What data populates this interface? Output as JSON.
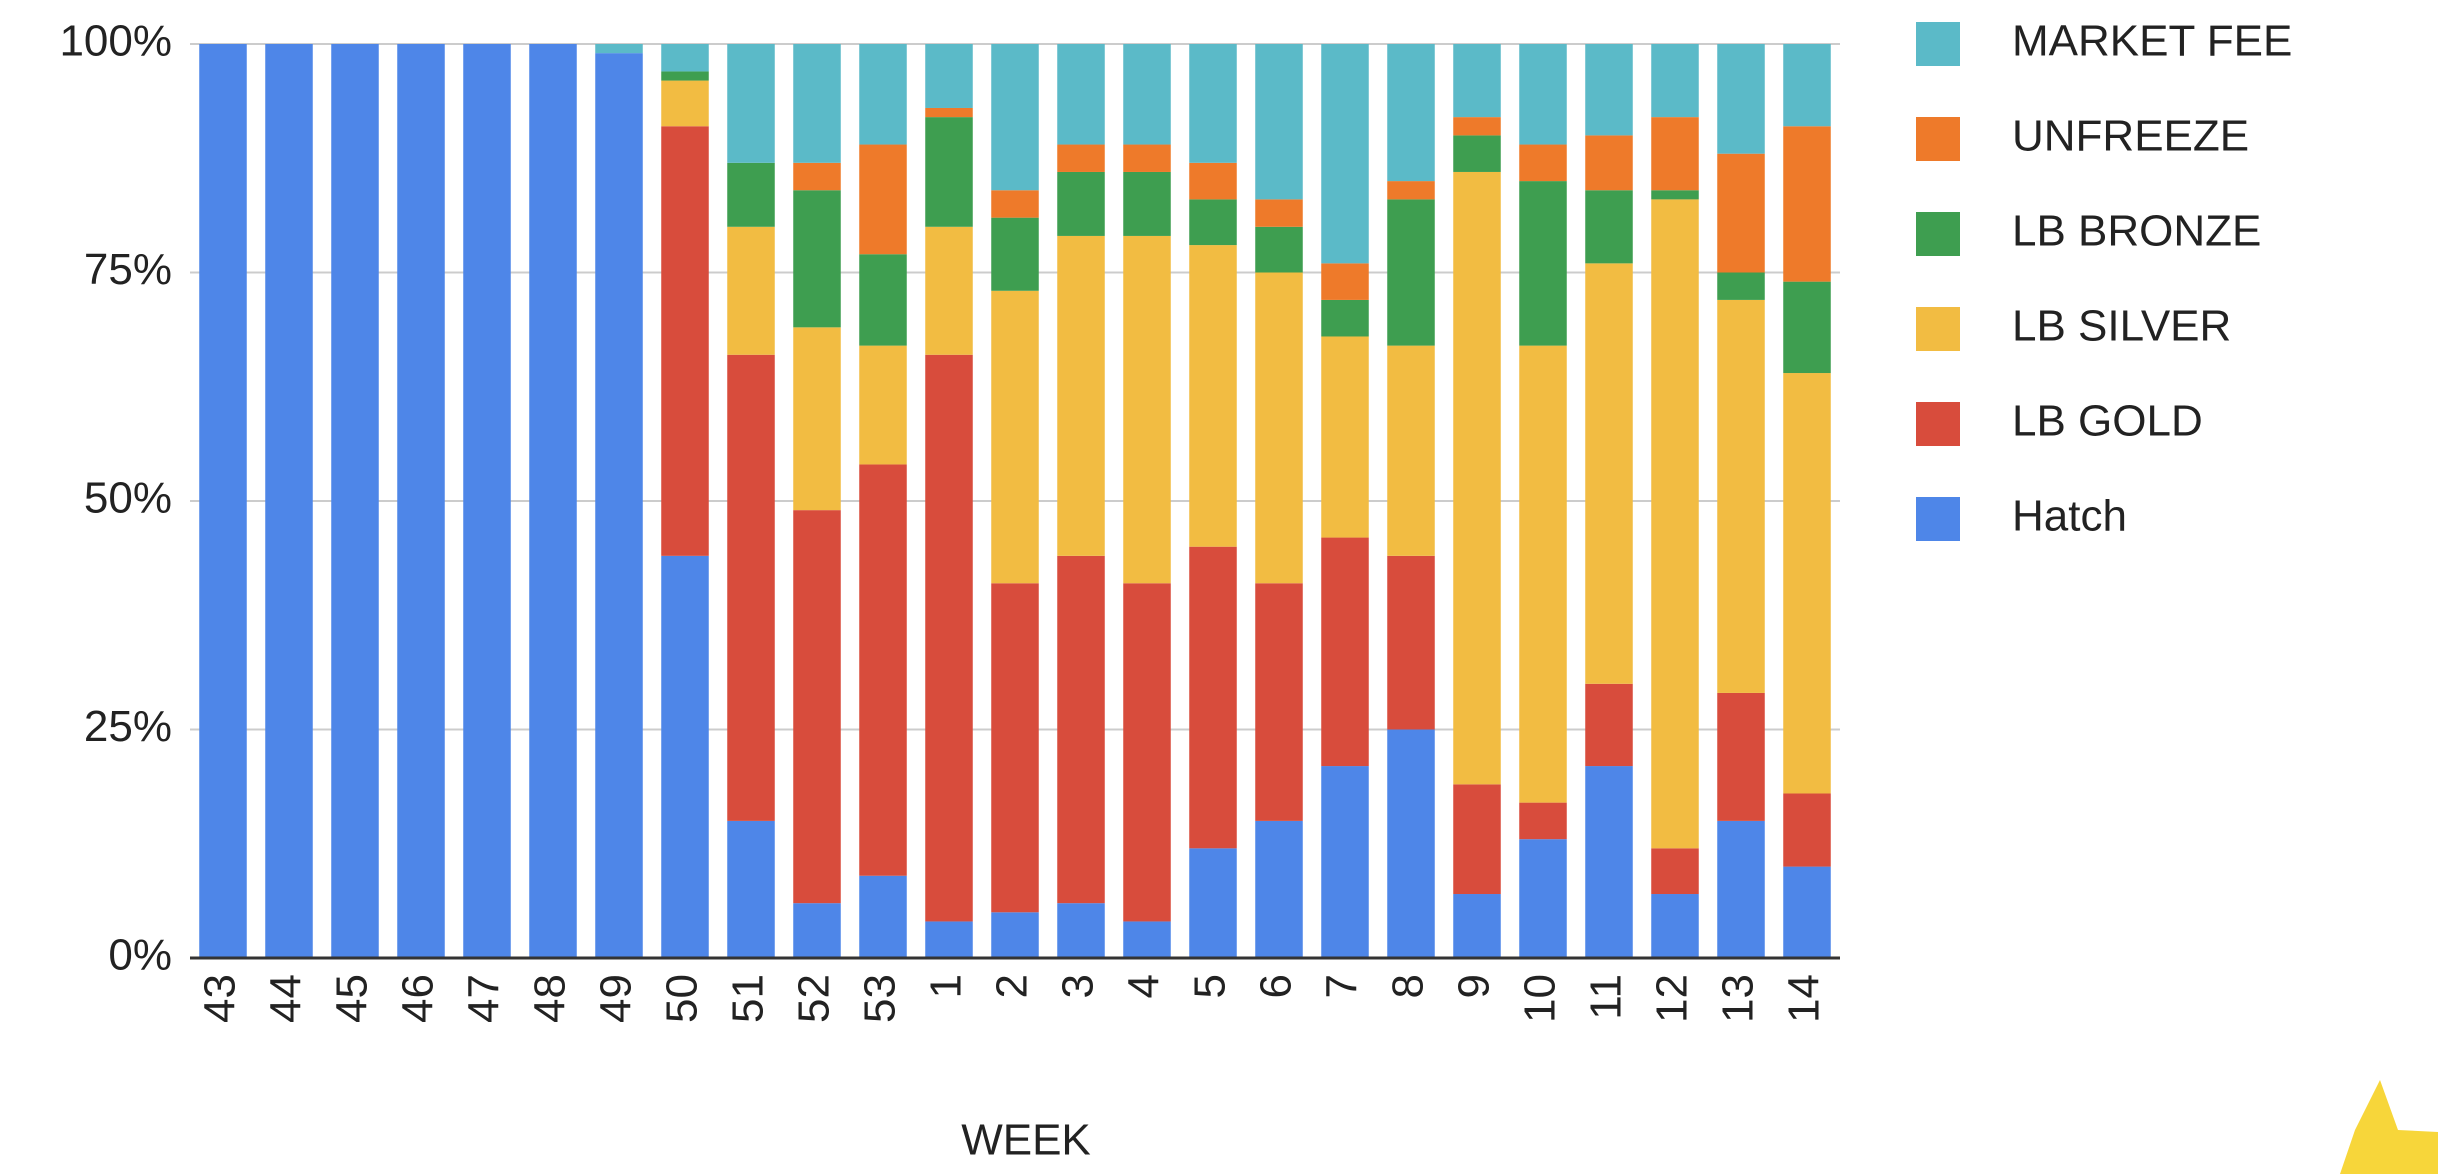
{
  "chart_data": {
    "type": "stacked_bar",
    "x_label": "WEEK",
    "categories": [
      "43",
      "44",
      "45",
      "46",
      "47",
      "48",
      "49",
      "50",
      "51",
      "52",
      "53",
      "1",
      "2",
      "3",
      "4",
      "5",
      "6",
      "7",
      "8",
      "9",
      "10",
      "11",
      "12",
      "13",
      "14"
    ],
    "series": [
      {
        "name": "Hatch",
        "color": "#4e86e8",
        "values": [
          100,
          100,
          100,
          100,
          100,
          100,
          99,
          44,
          15,
          6,
          9,
          4,
          5,
          6,
          4,
          12,
          15,
          21,
          25,
          7,
          13,
          21,
          7,
          15,
          10
        ]
      },
      {
        "name": "LB GOLD",
        "color": "#d84c3c",
        "values": [
          0,
          0,
          0,
          0,
          0,
          0,
          0,
          47,
          51,
          43,
          45,
          62,
          36,
          38,
          37,
          33,
          26,
          25,
          19,
          12,
          4,
          9,
          5,
          14,
          8
        ]
      },
      {
        "name": "LB SILVER",
        "color": "#f2bc42",
        "values": [
          0,
          0,
          0,
          0,
          0,
          0,
          0,
          5,
          14,
          20,
          13,
          14,
          32,
          35,
          38,
          33,
          34,
          22,
          23,
          67,
          50,
          46,
          71,
          43,
          46
        ]
      },
      {
        "name": "LB BRONZE",
        "color": "#3e9e50",
        "values": [
          0,
          0,
          0,
          0,
          0,
          0,
          0,
          1,
          7,
          15,
          10,
          12,
          8,
          7,
          7,
          5,
          5,
          4,
          16,
          4,
          18,
          8,
          1,
          3,
          10
        ]
      },
      {
        "name": "UNFREEZE",
        "color": "#ee7a2a",
        "values": [
          0,
          0,
          0,
          0,
          0,
          0,
          0,
          0,
          0,
          3,
          12,
          1,
          3,
          3,
          3,
          4,
          3,
          4,
          2,
          2,
          4,
          6,
          8,
          13,
          17
        ]
      },
      {
        "name": "MARKET FEE",
        "color": "#5bbac8",
        "values": [
          0,
          0,
          0,
          0,
          0,
          0,
          1,
          3,
          13,
          13,
          11,
          7,
          16,
          11,
          11,
          13,
          17,
          24,
          15,
          8,
          11,
          10,
          8,
          12,
          9
        ]
      }
    ],
    "ylim": [
      0,
      100
    ],
    "yticks": [
      {
        "value": 0,
        "label": "0%"
      },
      {
        "value": 25,
        "label": "25%"
      },
      {
        "value": 50,
        "label": "50%"
      },
      {
        "value": 75,
        "label": "75%"
      },
      {
        "value": 100,
        "label": "100%"
      }
    ],
    "grid": true
  }
}
